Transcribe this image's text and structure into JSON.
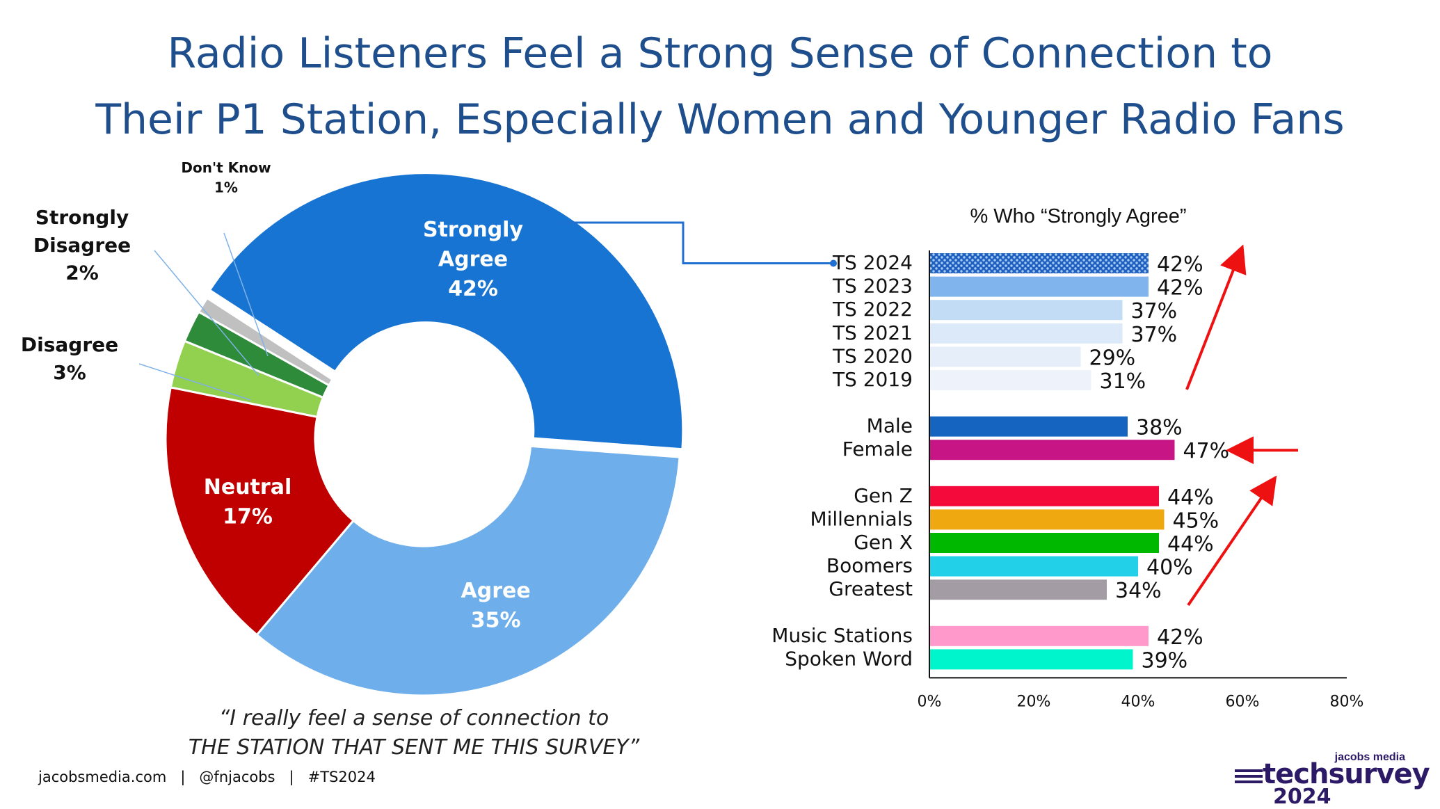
{
  "title": {
    "line1": "Radio Listeners Feel a Strong Sense of Connection to",
    "line2": "Their P1 Station, Especially Women and Younger Radio Fans"
  },
  "chart_data": [
    {
      "type": "pie",
      "variant": "donut",
      "slices": [
        {
          "name": "Strongly Agree",
          "label_lines": [
            "Strongly",
            "Agree"
          ],
          "value": 42,
          "value_label": "42%",
          "color": "#1874d2"
        },
        {
          "name": "Agree",
          "label_lines": [
            "Agree"
          ],
          "value": 35,
          "value_label": "35%",
          "color": "#6eaeeb"
        },
        {
          "name": "Neutral",
          "label_lines": [
            "Neutral"
          ],
          "value": 17,
          "value_label": "17%",
          "color": "#c00000"
        },
        {
          "name": "Disagree",
          "label_lines": [
            "Disagree"
          ],
          "value": 3,
          "value_label": "3%",
          "color": "#92d050"
        },
        {
          "name": "Strongly Disagree",
          "label_lines": [
            "Strongly",
            "Disagree"
          ],
          "value": 2,
          "value_label": "2%",
          "color": "#2e8b3a"
        },
        {
          "name": "Don't Know",
          "label_lines": [
            "Don't Know"
          ],
          "value": 1,
          "value_label": "1%",
          "color": "#c0c0c0"
        }
      ]
    },
    {
      "type": "bar",
      "orientation": "horizontal",
      "title": "% Who “Strongly Agree”",
      "xlim": [
        0,
        80
      ],
      "x_ticks": [
        0,
        20,
        40,
        60,
        80
      ],
      "x_tick_labels": [
        "0%",
        "20%",
        "40%",
        "60%",
        "80%"
      ],
      "bars": [
        {
          "category": "TS 2024",
          "value": 42,
          "label": "42%",
          "color": "#1e5fbf",
          "pattern": true
        },
        {
          "category": "TS 2023",
          "value": 42,
          "label": "42%",
          "color": "#7fb5ec"
        },
        {
          "category": "TS 2022",
          "value": 37,
          "label": "37%",
          "color": "#c3dcf6"
        },
        {
          "category": "TS 2021",
          "value": 37,
          "label": "37%",
          "color": "#dbe9f9"
        },
        {
          "category": "TS 2020",
          "value": 29,
          "label": "29%",
          "color": "#e5eef9"
        },
        {
          "category": "TS 2019",
          "value": 31,
          "label": "31%",
          "color": "#eef3fb"
        },
        {
          "category": "Male",
          "value": 38,
          "label": "38%",
          "color": "#1565c0"
        },
        {
          "category": "Female",
          "value": 47,
          "label": "47%",
          "color": "#c71585"
        },
        {
          "category": "Gen Z",
          "value": 44,
          "label": "44%",
          "color": "#f50a3c"
        },
        {
          "category": "Millennials",
          "value": 45,
          "label": "45%",
          "color": "#f0a811"
        },
        {
          "category": "Gen X",
          "value": 44,
          "label": "44%",
          "color": "#00b800"
        },
        {
          "category": "Boomers",
          "value": 40,
          "label": "40%",
          "color": "#22d0e8"
        },
        {
          "category": "Greatest",
          "value": 34,
          "label": "34%",
          "color": "#a39ca5"
        },
        {
          "category": "Music Stations",
          "value": 42,
          "label": "42%",
          "color": "#ff99cc"
        },
        {
          "category": "Spoken Word",
          "value": 39,
          "label": "39%",
          "color": "#00f5cc"
        }
      ],
      "annotations": [
        "up arrow beside TS 2019–TS 2024",
        "left arrow pointing at Female",
        "up arrow beside Gen Z–Greatest"
      ]
    }
  ],
  "colors": {
    "title": "#1f4e8c",
    "arrow": "#ee1111",
    "connector": "#1f6fd0"
  },
  "quote": {
    "line1": "“I really feel a sense of connection to",
    "line2": "THE STATION THAT SENT ME THIS SURVEY”"
  },
  "footer": {
    "text": "jacobsmedia.com   |   @fnjacobs   |   #TS2024"
  },
  "logo": {
    "small": "jacobs media",
    "brand": "techsurvey",
    "year": "2024"
  }
}
